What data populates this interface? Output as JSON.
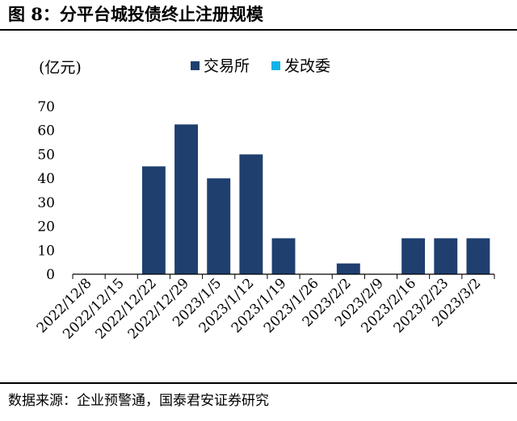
{
  "figure": {
    "title": "图 8：分平台城投债终止注册规模",
    "source": "数据来源：企业预警通，国泰君安证券研究"
  },
  "chart_data": {
    "type": "bar",
    "title": "",
    "ylabel": "(亿元)",
    "xlabel": "",
    "ylim": [
      0,
      70
    ],
    "yticks": [
      0,
      10,
      20,
      30,
      40,
      50,
      60,
      70
    ],
    "grid": false,
    "legend_position": "top",
    "categories": [
      "2022/12/8",
      "2022/12/15",
      "2022/12/22",
      "2022/12/29",
      "2023/1/5",
      "2023/1/12",
      "2023/1/19",
      "2023/1/26",
      "2023/2/2",
      "2023/2/9",
      "2023/2/16",
      "2023/2/23",
      "2023/3/2"
    ],
    "series": [
      {
        "name": "交易所",
        "color": "#1f3f6f",
        "values": [
          0,
          0,
          45,
          62.5,
          40,
          50,
          15,
          0,
          4.5,
          0,
          15,
          15,
          15
        ]
      },
      {
        "name": "发改委",
        "color": "#12b2e7",
        "values": [
          0,
          0,
          0,
          0,
          0,
          0,
          0,
          0,
          0,
          0,
          0,
          0,
          0
        ]
      }
    ]
  }
}
